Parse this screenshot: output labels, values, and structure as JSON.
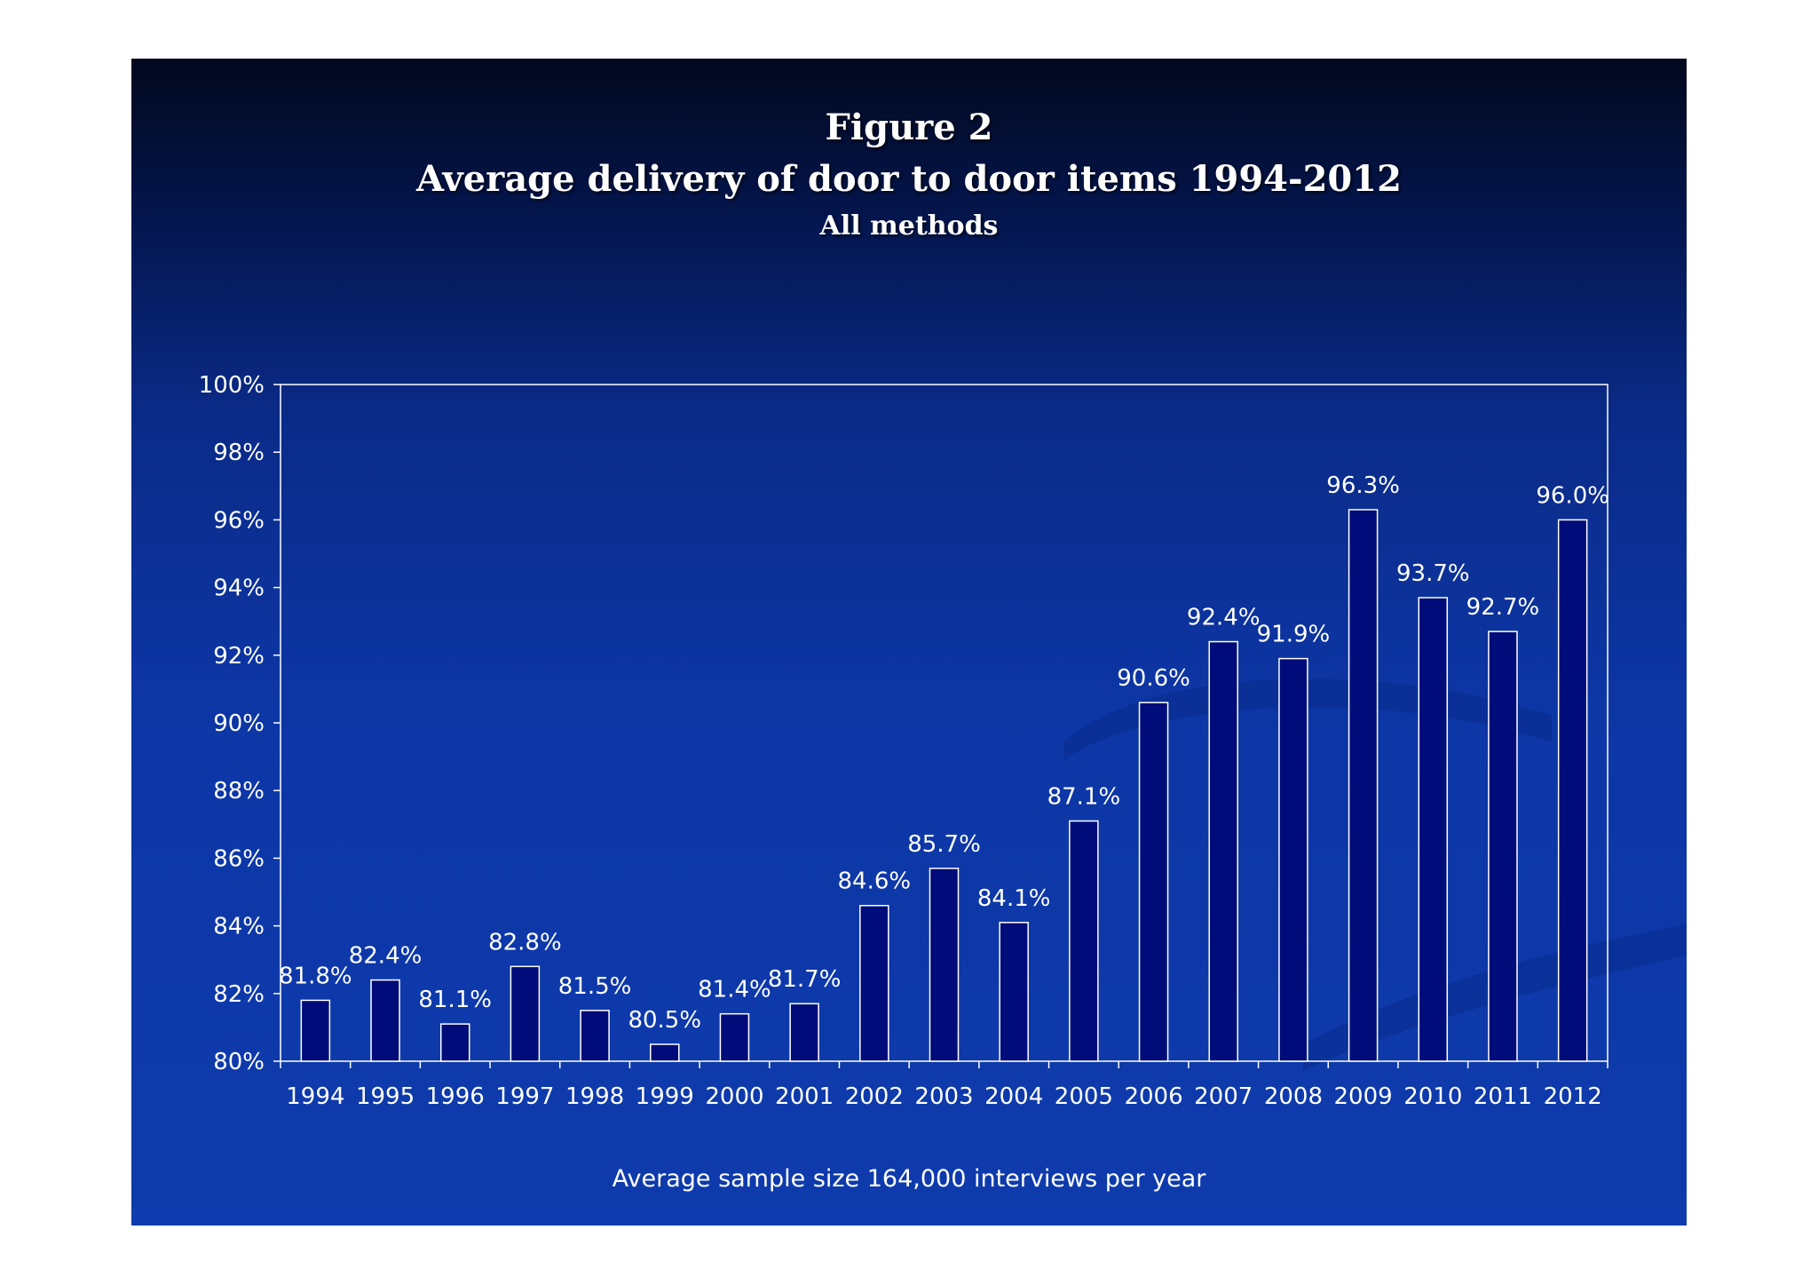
{
  "figure": {
    "label": "Figure 2",
    "title": "Average delivery of door to door items 1994-2012",
    "subtitle": "All methods"
  },
  "footnote": "Average sample size 164,000 interviews per year",
  "colors": {
    "bar_fill": "#000c7a",
    "bar_stroke": "#ffffff",
    "text": "#ffffff",
    "axis": "#ffffff"
  },
  "chart_data": {
    "type": "bar",
    "title": "Average delivery of door to door items 1994-2012",
    "subtitle": "All methods",
    "xlabel": "",
    "ylabel": "",
    "categories": [
      "1994",
      "1995",
      "1996",
      "1997",
      "1998",
      "1999",
      "2000",
      "2001",
      "2002",
      "2003",
      "2004",
      "2005",
      "2006",
      "2007",
      "2008",
      "2009",
      "2010",
      "2011",
      "2012"
    ],
    "values": [
      81.8,
      82.4,
      81.1,
      82.8,
      81.5,
      80.5,
      81.4,
      81.7,
      84.6,
      85.7,
      84.1,
      87.1,
      90.6,
      92.4,
      91.9,
      96.3,
      93.7,
      92.7,
      96.0
    ],
    "data_labels": [
      "81.8%",
      "82.4%",
      "81.1%",
      "82.8%",
      "81.5%",
      "80.5%",
      "81.4%",
      "81.7%",
      "84.6%",
      "85.7%",
      "84.1%",
      "87.1%",
      "90.6%",
      "92.4%",
      "91.9%",
      "96.3%",
      "93.7%",
      "92.7%",
      "96.0%"
    ],
    "ylim": [
      80,
      100
    ],
    "yticks": [
      80,
      82,
      84,
      86,
      88,
      90,
      92,
      94,
      96,
      98,
      100
    ],
    "ytick_labels": [
      "80%",
      "82%",
      "84%",
      "86%",
      "88%",
      "90%",
      "92%",
      "94%",
      "96%",
      "98%",
      "100%"
    ],
    "grid": false,
    "legend": "none"
  }
}
